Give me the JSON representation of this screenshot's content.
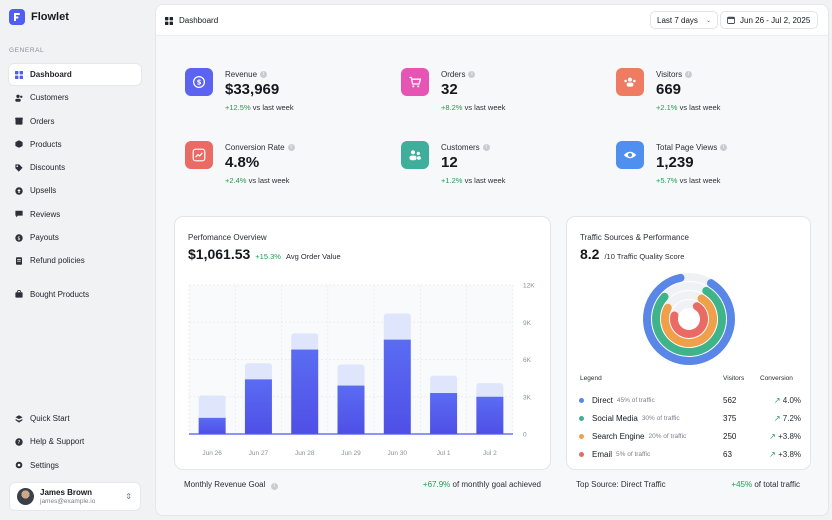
{
  "app": {
    "name": "Flowlet"
  },
  "sidebar": {
    "section_label": "GENERAL",
    "items": [
      {
        "label": "Dashboard",
        "icon": "grid-icon"
      },
      {
        "label": "Customers",
        "icon": "users-icon"
      },
      {
        "label": "Orders",
        "icon": "box-icon"
      },
      {
        "label": "Products",
        "icon": "cube-icon"
      },
      {
        "label": "Discounts",
        "icon": "tag-icon"
      },
      {
        "label": "Upsells",
        "icon": "arrow-up-icon"
      },
      {
        "label": "Reviews",
        "icon": "chat-icon"
      },
      {
        "label": "Payouts",
        "icon": "dollar-icon"
      },
      {
        "label": "Refund policies",
        "icon": "document-icon"
      },
      {
        "label": "Bought Products",
        "icon": "bag-icon"
      }
    ],
    "bottom_items": [
      {
        "label": "Quick Start",
        "icon": "layers-icon"
      },
      {
        "label": "Help & Support",
        "icon": "help-icon"
      },
      {
        "label": "Settings",
        "icon": "gear-icon"
      }
    ],
    "user": {
      "name": "James Brown",
      "email": "james@example.io"
    }
  },
  "header": {
    "breadcrumb": "Dashboard",
    "range_select": "Last 7 days",
    "date_range": "Jun 26 - Jul 2, 2025"
  },
  "stats": [
    {
      "label": "Revenue",
      "value": "$33,969",
      "delta": "+12.5%",
      "delta_text": "vs last week",
      "color": "#5b63f0",
      "icon": "dollar-icon"
    },
    {
      "label": "Orders",
      "value": "32",
      "delta": "+8.2%",
      "delta_text": "vs last week",
      "color": "#e654b4",
      "icon": "cart-icon"
    },
    {
      "label": "Visitors",
      "value": "669",
      "delta": "+2.1%",
      "delta_text": "vs last week",
      "color": "#ee7b62",
      "icon": "visitors-icon"
    },
    {
      "label": "Conversion Rate",
      "value": "4.8%",
      "delta": "+2.4%",
      "delta_text": "vs last week",
      "color": "#ea6a64",
      "icon": "trend-icon"
    },
    {
      "label": "Customers",
      "value": "12",
      "delta": "+1.2%",
      "delta_text": "vs last week",
      "color": "#3fae9a",
      "icon": "customers-icon"
    },
    {
      "label": "Total Page Views",
      "value": "1,239",
      "delta": "+5.7%",
      "delta_text": "vs last week",
      "color": "#4f8ff0",
      "icon": "eye-icon"
    }
  ],
  "performance": {
    "title": "Perfomance Overview",
    "value": "$1,061.53",
    "delta": "+15.3%",
    "metric": "Avg Order Value",
    "footer_label": "Monthly Revenue Goal",
    "footer_delta": "+67.9%",
    "footer_text": "of monthly goal achieved"
  },
  "chart_data": {
    "type": "bar",
    "categories": [
      "Jun 26",
      "Jun 27",
      "Jun 28",
      "Jun 29",
      "Jun 30",
      "Jul 1",
      "Jul 2"
    ],
    "series": [
      {
        "values": [
          1300,
          4400,
          6800,
          3900,
          7600,
          3300,
          3000
        ]
      },
      {
        "values": [
          1800,
          1300,
          1300,
          1700,
          2100,
          1400,
          1100
        ]
      }
    ],
    "y_ticks": [
      "12K",
      "9K",
      "6K",
      "3K",
      "0"
    ],
    "ylim": [
      0,
      12000
    ],
    "grid": true,
    "colors": [
      "#4f58ea",
      "#dfe6fb"
    ]
  },
  "traffic": {
    "title": "Traffic Sources & Performance",
    "score": "8.2",
    "score_label": "/10 Traffic Quality Score",
    "col_legend": "Legend",
    "col_visitors": "Visitors",
    "col_conversion": "Conversion",
    "sources": [
      {
        "name": "Direct",
        "share": "45% of traffic",
        "visitors": "562",
        "conversion": "4.0%",
        "color": "#5a86e8",
        "ring": 0.88
      },
      {
        "name": "Social Media",
        "share": "30% of traffic",
        "visitors": "375",
        "conversion": "7.2%",
        "color": "#3fb48a",
        "ring": 0.78
      },
      {
        "name": "Search Engine",
        "share": "20% of traffic",
        "visitors": "250",
        "conversion": "+3.8%",
        "color": "#f0a04b",
        "ring": 0.74
      },
      {
        "name": "Email",
        "share": "5% of traffic",
        "visitors": "63",
        "conversion": "+3.8%",
        "color": "#ea6a64",
        "ring": 0.7
      }
    ],
    "footer_label": "Top Source: Direct Traffic",
    "footer_delta": "+45%",
    "footer_text": "of total traffic"
  }
}
